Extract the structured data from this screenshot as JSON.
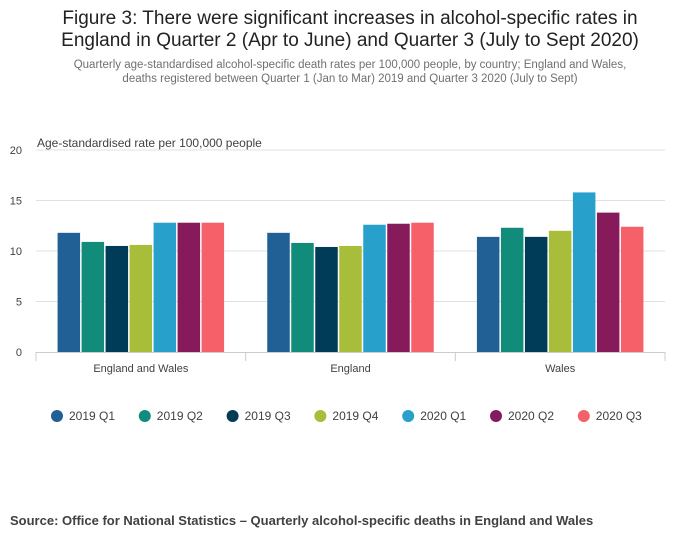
{
  "title_lines": [
    "Figure 3: There were significant increases in alcohol-specific rates in",
    "England in Quarter 2 (Apr to June) and Quarter 3 (July to Sept 2020)"
  ],
  "subtitle_lines": [
    "Quarterly age-standardised alcohol-specific death rates per 100,000 people, by country; England and Wales,",
    "deaths registered between Quarter 1 (Jan to Mar) 2019 and Quarter 3 2020 (July to Sept)"
  ],
  "source": "Source: Office for National Statistics – Quarterly alcohol-specific deaths in England and Wales",
  "chart_data": {
    "type": "bar",
    "title": "",
    "xlabel": "",
    "ylabel": "Age-standardised rate per 100,000 people",
    "ylim": [
      0,
      20
    ],
    "yticks": [
      0,
      5,
      10,
      15,
      20
    ],
    "grid": true,
    "legend_position": "bottom",
    "categories": [
      "England and Wales",
      "England",
      "Wales"
    ],
    "series": [
      {
        "name": "2019 Q1",
        "color": "#206095",
        "values": [
          11.8,
          11.8,
          11.4
        ]
      },
      {
        "name": "2019 Q2",
        "color": "#118c7b",
        "values": [
          10.9,
          10.8,
          12.3
        ]
      },
      {
        "name": "2019 Q3",
        "color": "#003c57",
        "values": [
          10.5,
          10.4,
          11.4
        ]
      },
      {
        "name": "2019 Q4",
        "color": "#a8bd3a",
        "values": [
          10.6,
          10.5,
          12.0
        ]
      },
      {
        "name": "2020 Q1",
        "color": "#27a0cc",
        "values": [
          12.8,
          12.6,
          15.8
        ]
      },
      {
        "name": "2020 Q2",
        "color": "#871a5b",
        "values": [
          12.8,
          12.7,
          13.8
        ]
      },
      {
        "name": "2020 Q3",
        "color": "#f66068",
        "values": [
          12.8,
          12.8,
          12.4
        ]
      }
    ]
  }
}
